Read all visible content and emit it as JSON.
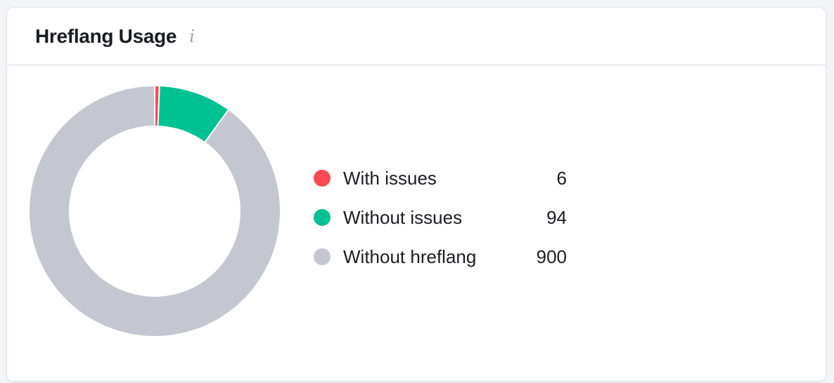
{
  "card": {
    "title": "Hreflang Usage",
    "info_icon": "info-icon",
    "info_glyph": "i"
  },
  "legend": {
    "items": [
      {
        "label": "With issues",
        "value": "6",
        "color": "#ff4953"
      },
      {
        "label": "Without issues",
        "value": "94",
        "color": "#00c191"
      },
      {
        "label": "Without hreflang",
        "value": "900",
        "color": "#c4c7cf"
      }
    ]
  },
  "chart_data": {
    "type": "pie",
    "subtype": "donut",
    "title": "Hreflang Usage",
    "categories": [
      "With issues",
      "Without issues",
      "Without hreflang"
    ],
    "values": [
      6,
      94,
      900
    ],
    "colors": [
      "#ff4953",
      "#00c191",
      "#c4c7cf"
    ],
    "total": 1000,
    "start_angle": "12 o'clock",
    "direction": "clockwise",
    "legend_position": "right"
  }
}
